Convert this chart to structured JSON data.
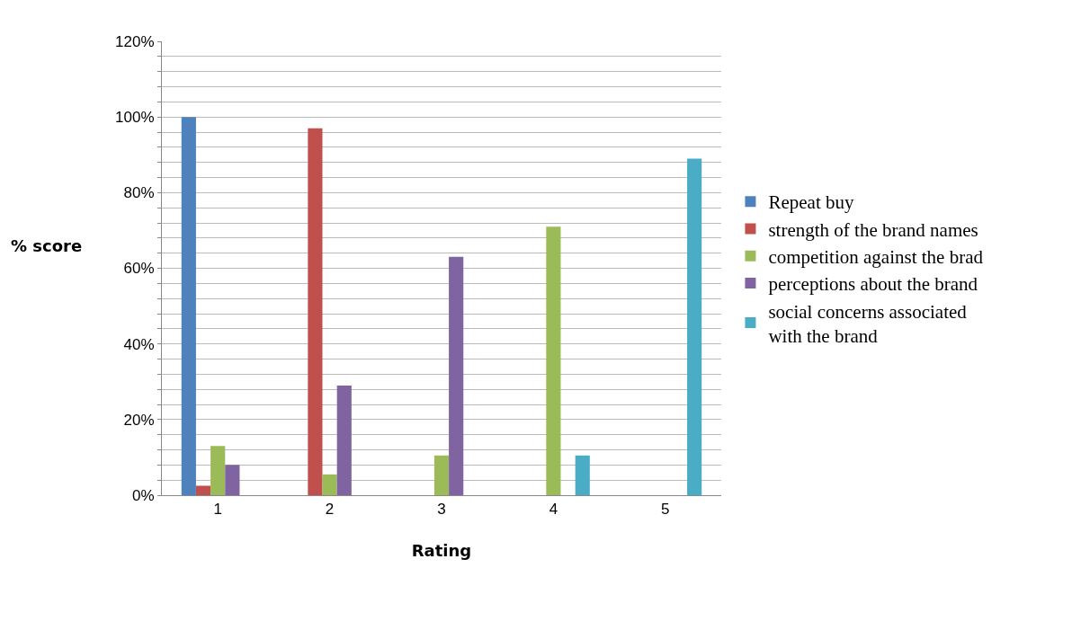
{
  "chart_data": {
    "type": "bar",
    "xlabel": "Rating",
    "ylabel": "% score",
    "categories": [
      "1",
      "2",
      "3",
      "4",
      "5"
    ],
    "series": [
      {
        "name": "Repeat buy",
        "color": "#4f81bd",
        "values": [
          100,
          0,
          0,
          0,
          0
        ]
      },
      {
        "name": "strength of the brand names",
        "color": "#c0504d",
        "values": [
          2.5,
          97,
          0,
          0,
          0
        ]
      },
      {
        "name": "competition against the brad",
        "color": "#9bbb59",
        "values": [
          13,
          5.5,
          10.5,
          71,
          0
        ]
      },
      {
        "name": "perceptions about the brand",
        "color": "#8064a2",
        "values": [
          8,
          29,
          63,
          0,
          0
        ]
      },
      {
        "name": "social concerns associated with the brand",
        "color": "#4bacc6",
        "values": [
          0,
          0,
          0,
          10.5,
          89
        ]
      }
    ],
    "ylim": [
      0,
      120
    ],
    "yticks": [
      {
        "value": 0,
        "label": "0%"
      },
      {
        "value": 4,
        "label": null
      },
      {
        "value": 8,
        "label": null
      },
      {
        "value": 12,
        "label": null
      },
      {
        "value": 16,
        "label": null
      },
      {
        "value": 20,
        "label": "20%"
      },
      {
        "value": 24,
        "label": null
      },
      {
        "value": 28,
        "label": null
      },
      {
        "value": 32,
        "label": null
      },
      {
        "value": 36,
        "label": null
      },
      {
        "value": 40,
        "label": "40%"
      },
      {
        "value": 44,
        "label": null
      },
      {
        "value": 48,
        "label": null
      },
      {
        "value": 52,
        "label": null
      },
      {
        "value": 56,
        "label": null
      },
      {
        "value": 60,
        "label": "60%"
      },
      {
        "value": 64,
        "label": null
      },
      {
        "value": 68,
        "label": null
      },
      {
        "value": 72,
        "label": null
      },
      {
        "value": 76,
        "label": null
      },
      {
        "value": 80,
        "label": "80%"
      },
      {
        "value": 84,
        "label": null
      },
      {
        "value": 88,
        "label": null
      },
      {
        "value": 92,
        "label": null
      },
      {
        "value": 96,
        "label": null
      },
      {
        "value": 100,
        "label": "100%"
      },
      {
        "value": 104,
        "label": null
      },
      {
        "value": 108,
        "label": null
      },
      {
        "value": 112,
        "label": null
      },
      {
        "value": 116,
        "label": null
      },
      {
        "value": 120,
        "label": "120%"
      }
    ],
    "grid": "y",
    "legend": "right"
  }
}
